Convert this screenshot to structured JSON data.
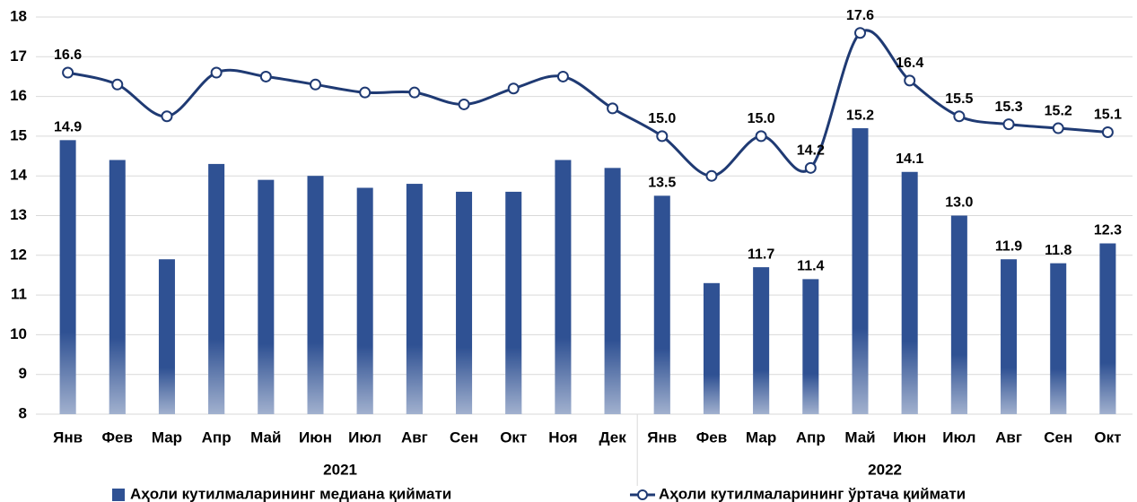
{
  "chart_data": {
    "type": "bar_line",
    "groups": [
      {
        "name": "2021",
        "categories": [
          "Янв",
          "Фев",
          "Мар",
          "Апр",
          "Май",
          "Июн",
          "Июл",
          "Авг",
          "Сен",
          "Окт",
          "Ноя",
          "Дек"
        ]
      },
      {
        "name": "2022",
        "categories": [
          "Янв",
          "Фев",
          "Мар",
          "Апр",
          "Май",
          "Июн",
          "Июл",
          "Авг",
          "Сен",
          "Окт"
        ]
      }
    ],
    "series": [
      {
        "name": "Аҳоли кутилмаларининг медиана қиймати",
        "type": "bar",
        "color": "#2f5193",
        "values": [
          14.9,
          14.4,
          11.9,
          14.3,
          13.9,
          14.0,
          13.7,
          13.8,
          13.6,
          13.6,
          14.4,
          14.2,
          13.5,
          11.3,
          11.7,
          11.4,
          15.2,
          14.1,
          13.0,
          11.9,
          11.8,
          12.3
        ],
        "value_labels": [
          "14.9",
          null,
          null,
          null,
          null,
          null,
          null,
          null,
          null,
          null,
          null,
          null,
          "13.5",
          null,
          "11.7",
          "11.4",
          "15.2",
          "14.1",
          "13.0",
          "11.9",
          "11.8",
          "12.3"
        ]
      },
      {
        "name": "Аҳоли кутилмаларининг ўртача қиймати",
        "type": "line",
        "color": "#1f3a73",
        "values": [
          16.6,
          16.3,
          15.5,
          16.6,
          16.5,
          16.3,
          16.1,
          16.1,
          15.8,
          16.2,
          16.5,
          15.7,
          15.0,
          14.0,
          15.0,
          14.2,
          17.6,
          16.4,
          15.5,
          15.3,
          15.2,
          15.1
        ],
        "value_labels": [
          "16.6",
          null,
          null,
          null,
          null,
          null,
          null,
          null,
          null,
          null,
          null,
          null,
          "15.0",
          null,
          "15.0",
          "14.2",
          "17.6",
          "16.4",
          "15.5",
          "15.3",
          "15.2",
          "15.1"
        ]
      }
    ],
    "ylim": [
      8,
      18
    ],
    "yticks": [
      8,
      9,
      10,
      11,
      12,
      13,
      14,
      15,
      16,
      17,
      18
    ],
    "grid": true,
    "legend": "bottom"
  }
}
